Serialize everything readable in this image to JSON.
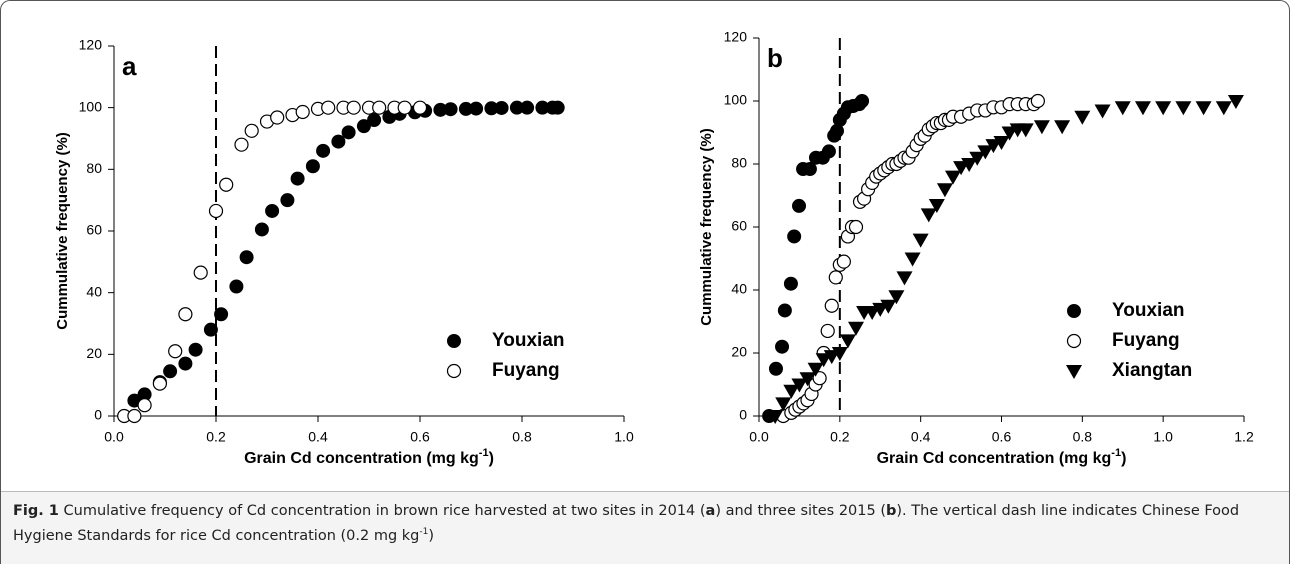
{
  "chart_data": [
    {
      "type": "scatter",
      "panel_label": "a",
      "y_label": "Cummulative frequency (%)",
      "x_label": [
        "Grain Cd concentration (mg kg",
        "-1",
        ")"
      ],
      "xlim": [
        0,
        1
      ],
      "xticks": [
        {
          "value": 0,
          "label": "0.0"
        },
        0.2,
        0.4,
        0.6,
        0.8,
        {
          "value": 1,
          "label": "1.0"
        }
      ],
      "ylim": [
        0,
        120
      ],
      "yticks": [
        0,
        20,
        40,
        60,
        80,
        100,
        120
      ],
      "ref_line_x": 0.2,
      "legend_loc": "lower right",
      "series": [
        {
          "name": "Youxian",
          "marker": "circle-filled",
          "color": "#000000",
          "x": [
            0.04,
            0.06,
            0.09,
            0.11,
            0.14,
            0.16,
            0.19,
            0.21,
            0.24,
            0.26,
            0.29,
            0.31,
            0.34,
            0.36,
            0.39,
            0.41,
            0.44,
            0.46,
            0.49,
            0.51,
            0.54,
            0.56,
            0.59,
            0.61,
            0.64,
            0.66,
            0.69,
            0.71,
            0.74,
            0.76,
            0.79,
            0.81,
            0.84,
            0.86,
            0.87
          ],
          "values": [
            5,
            7,
            11,
            14.5,
            17,
            21.5,
            28,
            33,
            42,
            51.5,
            60.5,
            66.5,
            70,
            77,
            81,
            86,
            89,
            92,
            94,
            96,
            97,
            98,
            98.5,
            99,
            99.3,
            99.5,
            99.6,
            99.7,
            99.8,
            99.9,
            100,
            100,
            100,
            100,
            100
          ]
        },
        {
          "name": "Fuyang",
          "marker": "circle-open",
          "color": "#000000",
          "x": [
            0.02,
            0.04,
            0.06,
            0.09,
            0.12,
            0.14,
            0.17,
            0.2,
            0.22,
            0.25,
            0.27,
            0.3,
            0.32,
            0.35,
            0.37,
            0.4,
            0.42,
            0.45,
            0.47,
            0.5,
            0.52,
            0.55,
            0.57,
            0.6
          ],
          "values": [
            0,
            0,
            3.5,
            10.5,
            21,
            33,
            46.5,
            66.5,
            75,
            88,
            92.5,
            95.5,
            96.8,
            97.6,
            98.6,
            99.6,
            100,
            100,
            100,
            100,
            100,
            100,
            100,
            100
          ]
        }
      ]
    },
    {
      "type": "scatter",
      "panel_label": "b",
      "y_label": "Cummulative  frequency (%)",
      "x_label": [
        "Grain Cd concentration (mg kg",
        "-1",
        ")"
      ],
      "xlim": [
        0,
        1.2
      ],
      "xticks": [
        {
          "value": 0,
          "label": "0.0"
        },
        0.2,
        0.4,
        0.6,
        0.8,
        {
          "value": 1,
          "label": "1.0"
        },
        1.2
      ],
      "ylim": [
        0,
        120
      ],
      "yticks": [
        0,
        20,
        40,
        60,
        80,
        100,
        120
      ],
      "ref_line_x": 0.2,
      "legend_loc": "lower right",
      "series": [
        {
          "name": "Youxian",
          "marker": "circle-filled",
          "color": "#000000",
          "x": [
            0.025,
            0.042,
            0.057,
            0.064,
            0.079,
            0.087,
            0.099,
            0.109,
            0.126,
            0.141,
            0.158,
            0.173,
            0.186,
            0.193,
            0.2,
            0.21,
            0.22,
            0.233,
            0.248,
            0.255
          ],
          "values": [
            0,
            15,
            22,
            33.5,
            42,
            57,
            66.7,
            78.4,
            78.4,
            82,
            82,
            84,
            89,
            90.5,
            94,
            96,
            98,
            98.4,
            99,
            100
          ]
        },
        {
          "name": "Fuyang",
          "marker": "circle-open",
          "color": "#000000",
          "x": [
            0.06,
            0.08,
            0.09,
            0.1,
            0.11,
            0.12,
            0.13,
            0.14,
            0.15,
            0.16,
            0.17,
            0.18,
            0.19,
            0.2,
            0.21,
            0.22,
            0.23,
            0.24,
            0.25,
            0.26,
            0.27,
            0.28,
            0.29,
            0.3,
            0.31,
            0.32,
            0.33,
            0.34,
            0.35,
            0.36,
            0.37,
            0.38,
            0.39,
            0.4,
            0.41,
            0.42,
            0.43,
            0.44,
            0.45,
            0.46,
            0.47,
            0.48,
            0.5,
            0.52,
            0.54,
            0.56,
            0.58,
            0.6,
            0.62,
            0.64,
            0.66,
            0.68,
            0.69
          ],
          "values": [
            0,
            1,
            2,
            3,
            4,
            5,
            7,
            10,
            12,
            20,
            27,
            35,
            44,
            48,
            49,
            57,
            60,
            60,
            68,
            69,
            72,
            74,
            76,
            77,
            78,
            79,
            80,
            80,
            81,
            82,
            82,
            84,
            86,
            88,
            89,
            91,
            92,
            93,
            93,
            94,
            94,
            95,
            95,
            96,
            97,
            97,
            98,
            98,
            99,
            99,
            99,
            99,
            100
          ]
        },
        {
          "name": "Xiangtan",
          "marker": "triangle-down",
          "color": "#000000",
          "x": [
            0.04,
            0.06,
            0.08,
            0.1,
            0.12,
            0.14,
            0.16,
            0.18,
            0.2,
            0.22,
            0.24,
            0.26,
            0.28,
            0.3,
            0.32,
            0.34,
            0.36,
            0.38,
            0.4,
            0.42,
            0.44,
            0.46,
            0.48,
            0.5,
            0.52,
            0.54,
            0.56,
            0.58,
            0.6,
            0.62,
            0.64,
            0.66,
            0.7,
            0.75,
            0.8,
            0.85,
            0.9,
            0.95,
            1,
            1.05,
            1.1,
            1.15,
            1.18
          ],
          "values": [
            0,
            4,
            8,
            10,
            12,
            15,
            18,
            19,
            20,
            24,
            28,
            33,
            33,
            34,
            35,
            38,
            44,
            50,
            56,
            64,
            67,
            72,
            76,
            79,
            80,
            82,
            84,
            86,
            87,
            90,
            91,
            91,
            92,
            92,
            95,
            97,
            98,
            98,
            98,
            98,
            98,
            98,
            100
          ]
        }
      ]
    }
  ],
  "caption": [
    {
      "text": "Fig. 1",
      "bold": true
    },
    {
      "text": " Cumulative frequency of Cd concentration in brown rice harvested at two sites in 2014 ("
    },
    {
      "text": "a",
      "bold": true
    },
    {
      "text": ") and three sites 2015 ("
    },
    {
      "text": "b",
      "bold": true
    },
    {
      "text": "). The vertical dash line indicates Chinese Food Hygiene Standards for rice Cd concentration (0.2 mg kg"
    },
    {
      "text": "-1",
      "sup": true
    },
    {
      "text": ")"
    }
  ]
}
